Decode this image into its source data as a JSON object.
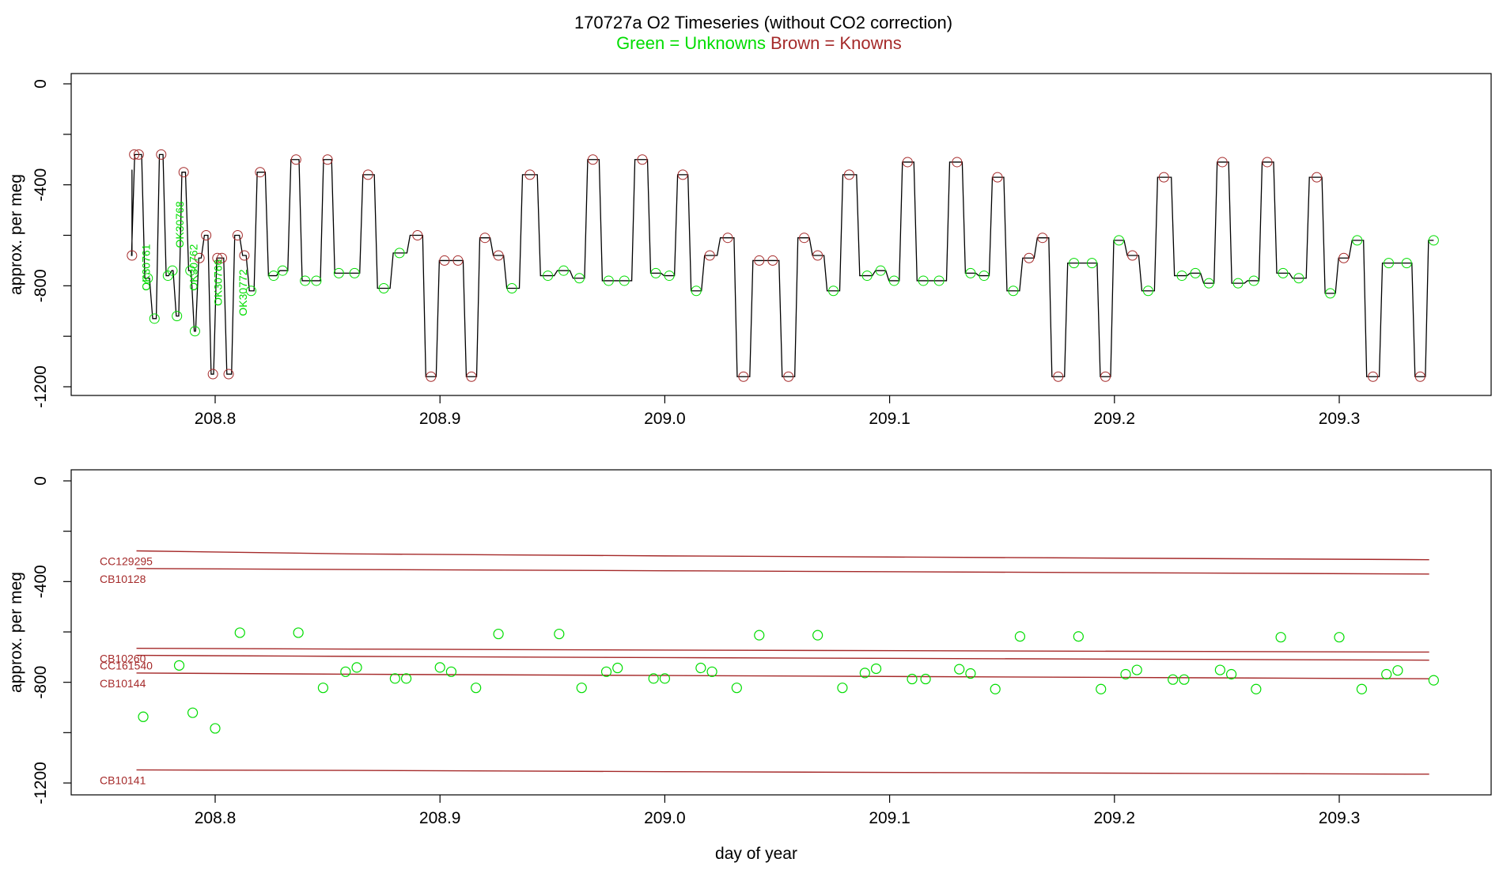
{
  "figure": {
    "title": "170727a   O2 Timeseries (without CO2 correction)",
    "legend_green": "Green = Unknowns",
    "legend_brown": "Brown = Knowns",
    "xlabel": "day of year"
  },
  "colors": {
    "unknown": "#00dd00",
    "known": "#a52a2a",
    "line": "#000000",
    "axis": "#000000"
  },
  "chart_data": [
    {
      "type": "line",
      "ylabel": "approx. per meg",
      "xlim": [
        208.745,
        209.37
      ],
      "ylim": [
        -1240,
        30
      ],
      "y_reversed": true,
      "xticks": [
        "208.8",
        "208.9",
        "209.0",
        "209.1",
        "209.2",
        "209.3"
      ],
      "xtick_values": [
        208.8,
        208.9,
        209.0,
        209.1,
        209.2,
        209.3
      ],
      "yticks": [
        "0",
        "-400",
        "-800",
        "-1200"
      ],
      "ytick_values": [
        0,
        -400,
        -800,
        -1200
      ],
      "series": [
        {
          "x": [
            208.763,
            208.764,
            208.766,
            208.77,
            208.773,
            208.776,
            208.779,
            208.781,
            208.783,
            208.786,
            208.789,
            208.791,
            208.793,
            208.796,
            208.799,
            208.801,
            208.803,
            208.806,
            208.81,
            208.813,
            208.816,
            208.82,
            208.826,
            208.83,
            208.836,
            208.84,
            208.845,
            208.85,
            208.855,
            208.862,
            208.868,
            208.875,
            208.882,
            208.89,
            208.896,
            208.902,
            208.908,
            208.914,
            208.92,
            208.926,
            208.932,
            208.94,
            208.948,
            208.955,
            208.962,
            208.968,
            208.975,
            208.982,
            208.99,
            208.996,
            209.002,
            209.008,
            209.014,
            209.02,
            209.028,
            209.035,
            209.042,
            209.048,
            209.055,
            209.062,
            209.068,
            209.075,
            209.082,
            209.09,
            209.096,
            209.102,
            209.108,
            209.115,
            209.122,
            209.13,
            209.136,
            209.142,
            209.148,
            209.155,
            209.162,
            209.168,
            209.175,
            209.182,
            209.19,
            209.196,
            209.202,
            209.208,
            209.215,
            209.222,
            209.23,
            209.236,
            209.242,
            209.248,
            209.255,
            209.262,
            209.268,
            209.275,
            209.282,
            209.29,
            209.296,
            209.302,
            209.308,
            209.315,
            209.322,
            209.33,
            209.336,
            209.342
          ],
          "y": [
            -680,
            -280,
            -280,
            -770,
            -930,
            -280,
            -760,
            -740,
            -920,
            -350,
            -740,
            -980,
            -690,
            -600,
            -1150,
            -690,
            -690,
            -1150,
            -600,
            -680,
            -820,
            -350,
            -760,
            -740,
            -300,
            -780,
            -780,
            -300,
            -750,
            -750,
            -360,
            -810,
            -670,
            -600,
            -1160,
            -700,
            -700,
            -1160,
            -610,
            -680,
            -810,
            -360,
            -760,
            -740,
            -770,
            -300,
            -780,
            -780,
            -300,
            -750,
            -760,
            -360,
            -820,
            -680,
            -610,
            -1160,
            -700,
            -700,
            -1160,
            -610,
            -680,
            -820,
            -360,
            -760,
            -740,
            -780,
            -310,
            -780,
            -780,
            -310,
            -750,
            -760,
            -370,
            -820,
            -690,
            -610,
            -1160,
            -710,
            -710,
            -1160,
            -620,
            -680,
            -820,
            -370,
            -760,
            -750,
            -790,
            -310,
            -790,
            -780,
            -310,
            -750,
            -770,
            -370,
            -830,
            -690,
            -620,
            -1160,
            -710,
            -710,
            -1160,
            -620
          ]
        }
      ],
      "annotations": [
        "OK30761",
        "OK30768",
        "OK30762",
        "OK30766",
        "OK30772"
      ]
    },
    {
      "type": "scatter",
      "ylabel": "approx. per meg",
      "xlim": [
        208.745,
        209.37
      ],
      "ylim": [
        -1240,
        30
      ],
      "y_reversed": true,
      "xticks": [
        "208.8",
        "208.9",
        "209.0",
        "209.1",
        "209.2",
        "209.3"
      ],
      "xtick_values": [
        208.8,
        208.9,
        209.0,
        209.1,
        209.2,
        209.3
      ],
      "yticks": [
        "0",
        "-400",
        "-800",
        "-1200"
      ],
      "ytick_values": [
        0,
        -400,
        -800,
        -1200
      ],
      "standards": [
        {
          "name": "CC129295",
          "x": [
            208.765,
            208.86,
            209.0,
            209.34
          ],
          "y": [
            -278,
            -290,
            -298,
            -313
          ]
        },
        {
          "name": "CB10128",
          "x": [
            208.765,
            208.86,
            209.0,
            209.34
          ],
          "y": [
            -348,
            -352,
            -357,
            -370
          ]
        },
        {
          "name": "CB10260",
          "x": [
            208.765,
            208.86,
            209.0,
            209.34
          ],
          "y": [
            -665,
            -668,
            -672,
            -680
          ]
        },
        {
          "name": "CC161540",
          "x": [
            208.765,
            208.86,
            209.0,
            209.34
          ],
          "y": [
            -693,
            -697,
            -702,
            -712
          ]
        },
        {
          "name": "CB10144",
          "x": [
            208.765,
            208.86,
            209.0,
            209.34
          ],
          "y": [
            -763,
            -768,
            -773,
            -786
          ]
        },
        {
          "name": "CB10141",
          "x": [
            208.765,
            208.86,
            209.0,
            209.34
          ],
          "y": [
            -1148,
            -1150,
            -1155,
            -1165
          ]
        }
      ],
      "unknowns": {
        "x": [
          208.768,
          208.784,
          208.79,
          208.8,
          208.811,
          208.837,
          208.848,
          208.858,
          208.863,
          208.88,
          208.885,
          208.9,
          208.905,
          208.916,
          208.926,
          208.953,
          208.963,
          208.974,
          208.979,
          208.995,
          209.0,
          209.016,
          209.021,
          209.032,
          209.042,
          209.068,
          209.079,
          209.089,
          209.094,
          209.11,
          209.116,
          209.131,
          209.136,
          209.147,
          209.158,
          209.184,
          209.194,
          209.205,
          209.21,
          209.226,
          209.231,
          209.247,
          209.252,
          209.263,
          209.274,
          209.3,
          209.31,
          209.321,
          209.326,
          209.342
        ],
        "y": [
          -937,
          -733,
          -921,
          -983,
          -603,
          -603,
          -822,
          -758,
          -741,
          -785,
          -785,
          -741,
          -758,
          -822,
          -608,
          -608,
          -822,
          -758,
          -743,
          -785,
          -785,
          -743,
          -758,
          -822,
          -613,
          -613,
          -822,
          -763,
          -746,
          -787,
          -787,
          -748,
          -765,
          -827,
          -618,
          -618,
          -827,
          -768,
          -751,
          -789,
          -789,
          -751,
          -768,
          -827,
          -621,
          -621,
          -827,
          -768,
          -753,
          -792
        ]
      }
    }
  ]
}
